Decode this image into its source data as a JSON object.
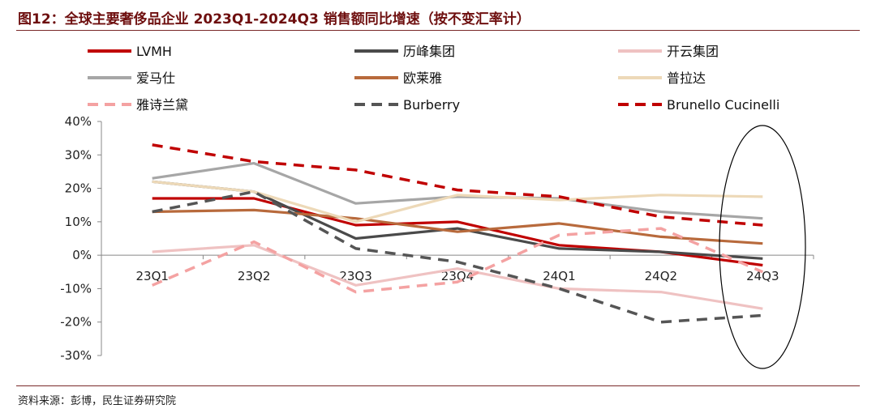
{
  "title": "图12：全球主要奢侈品企业 2023Q1-2024Q3 销售额同比增速（按不变汇率计）",
  "source": "资料来源：彭博，民生证券研究院",
  "chart_data": {
    "type": "line",
    "categories": [
      "23Q1",
      "23Q2",
      "23Q3",
      "23Q4",
      "24Q1",
      "24Q2",
      "24Q3"
    ],
    "ylim": [
      -30,
      40
    ],
    "yticks": [
      "40%",
      "30%",
      "20%",
      "10%",
      "0%",
      "-10%",
      "-20%",
      "-30%"
    ],
    "ytick_values": [
      40,
      30,
      20,
      10,
      0,
      -10,
      -20,
      -30
    ],
    "legend_placement": "top",
    "annotation": "ellipse highlighting 24Q3",
    "series": [
      {
        "name": "LVMH",
        "color": "#c00000",
        "dash": "solid",
        "values": [
          17,
          17,
          9,
          10,
          3,
          1,
          -3
        ]
      },
      {
        "name": "历峰集团",
        "color": "#4a4a4a",
        "dash": "solid",
        "values": [
          22,
          19,
          5,
          8,
          2,
          1,
          -1
        ]
      },
      {
        "name": "开云集团",
        "color": "#efc2c2",
        "dash": "solid",
        "values": [
          1,
          3,
          -9,
          -4,
          -10,
          -11,
          -16
        ]
      },
      {
        "name": "爱马仕",
        "color": "#a6a6a6",
        "dash": "solid",
        "values": [
          23,
          27.5,
          15.5,
          17.5,
          17,
          13,
          11
        ]
      },
      {
        "name": "欧莱雅",
        "color": "#b86a3c",
        "dash": "solid",
        "values": [
          13,
          13.5,
          11,
          7,
          9.5,
          5.5,
          3.5
        ]
      },
      {
        "name": "普拉达",
        "color": "#edd9b8",
        "dash": "solid",
        "values": [
          22,
          19,
          10,
          18,
          16.5,
          18,
          17.5
        ]
      },
      {
        "name": "雅诗兰黛",
        "color": "#f4a2a2",
        "dash": "dashed",
        "values": [
          -9,
          4,
          -11,
          -8,
          6,
          8,
          -5
        ]
      },
      {
        "name": "Burberry",
        "color": "#555555",
        "dash": "dashed",
        "values": [
          13,
          19,
          2,
          -2,
          -10,
          -20,
          -18
        ]
      },
      {
        "name": "Brunello Cucinelli",
        "color": "#c00000",
        "dash": "dashed",
        "values": [
          33,
          28,
          25.5,
          19.5,
          17.5,
          11.5,
          9
        ]
      }
    ]
  }
}
